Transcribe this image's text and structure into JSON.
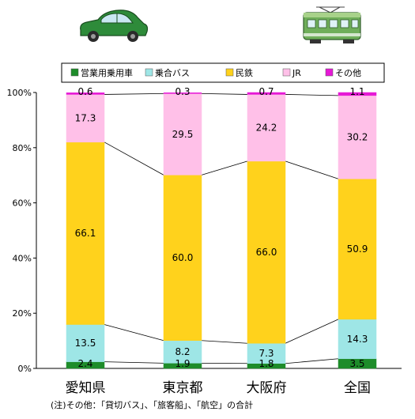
{
  "chart_data": {
    "type": "bar",
    "stacked": true,
    "categories": [
      "愛知県",
      "東京都",
      "大阪府",
      "全国"
    ],
    "series": [
      {
        "name": "営業用乗用車",
        "color": "#1e8c2a",
        "values": [
          2.4,
          1.9,
          1.8,
          3.5
        ]
      },
      {
        "name": "乗合バス",
        "color": "#9ee6e6",
        "values": [
          13.5,
          8.2,
          7.3,
          14.3
        ]
      },
      {
        "name": "民鉄",
        "color": "#ffd21c",
        "values": [
          66.1,
          60.0,
          66.0,
          50.9
        ]
      },
      {
        "name": "JR",
        "color": "#ffc0e8",
        "values": [
          17.3,
          29.5,
          24.2,
          30.2
        ]
      },
      {
        "name": "その他",
        "color": "#e619d6",
        "values": [
          0.6,
          0.3,
          0.7,
          1.1
        ]
      }
    ],
    "value_labels": [
      [
        "2.4",
        "1.9",
        "1.8",
        "3.5"
      ],
      [
        "13.5",
        "8.2",
        "7.3",
        "14.3"
      ],
      [
        "66.1",
        "60.0",
        "66.0",
        "50.9"
      ],
      [
        "17.3",
        "29.5",
        "24.2",
        "30.2"
      ],
      [
        "0.6",
        "0.3",
        "0.7",
        "1.1"
      ]
    ],
    "y_ticks": [
      "0%",
      "20%",
      "40%",
      "60%",
      "80%",
      "100%"
    ],
    "ylim": [
      0,
      100
    ],
    "legend_position": "top",
    "connector_lines": true,
    "note": "(注)その他：「貸切バス」、「旅客船」、「航空」の合計"
  },
  "icons": {
    "car": "car-icon",
    "train": "train-icon"
  }
}
